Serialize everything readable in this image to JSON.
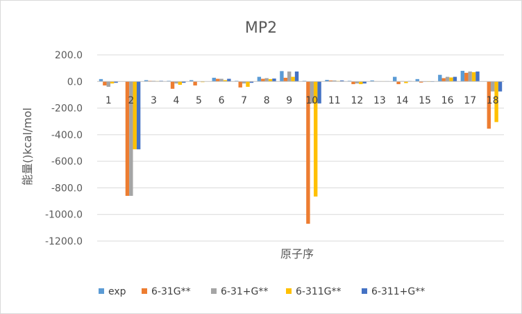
{
  "chart_data": {
    "type": "bar",
    "title": "MP2",
    "xlabel": "原子序",
    "ylabel": "能量()kcal/mol",
    "ylim": [
      -1200,
      200
    ],
    "yticks": [
      "200.0",
      "0.0",
      "-200.0",
      "-400.0",
      "-600.0",
      "-800.0",
      "-1000.0",
      "-1200.0"
    ],
    "ytick_values": [
      200,
      0,
      -200,
      -400,
      -600,
      -800,
      -1000,
      -1200
    ],
    "categories": [
      "1",
      "2",
      "3",
      "4",
      "5",
      "6",
      "7",
      "8",
      "9",
      "10",
      "11",
      "12",
      "13",
      "14",
      "15",
      "16",
      "17",
      "18"
    ],
    "grid": true,
    "legend_position": "bottom",
    "series": [
      {
        "name": "exp",
        "color": "#5b9bd5",
        "values": [
          18,
          0,
          10,
          5,
          10,
          28,
          5,
          35,
          78,
          5,
          12,
          5,
          8,
          35,
          18,
          50,
          80,
          0
        ]
      },
      {
        "name": "6-31G**",
        "color": "#ed7d31",
        "values": [
          -30,
          -860,
          5,
          -55,
          -30,
          20,
          -45,
          20,
          28,
          -1070,
          8,
          -20,
          2,
          -20,
          -8,
          25,
          65,
          -355
        ]
      },
      {
        "name": "6-31+G**",
        "color": "#a5a5a5",
        "values": [
          -40,
          -860,
          5,
          -15,
          0,
          20,
          -15,
          25,
          75,
          -165,
          8,
          -15,
          2,
          3,
          -3,
          35,
          75,
          -75
        ]
      },
      {
        "name": "6-311G**",
        "color": "#ffc000",
        "values": [
          -15,
          -510,
          3,
          -25,
          -5,
          10,
          -40,
          18,
          35,
          -865,
          4,
          -20,
          2,
          -12,
          -3,
          30,
          70,
          -305
        ]
      },
      {
        "name": "6-311+G**",
        "color": "#4472c4",
        "values": [
          -10,
          -510,
          5,
          -10,
          0,
          20,
          -10,
          22,
          75,
          -165,
          8,
          -15,
          2,
          3,
          -3,
          35,
          75,
          -75
        ]
      }
    ]
  }
}
